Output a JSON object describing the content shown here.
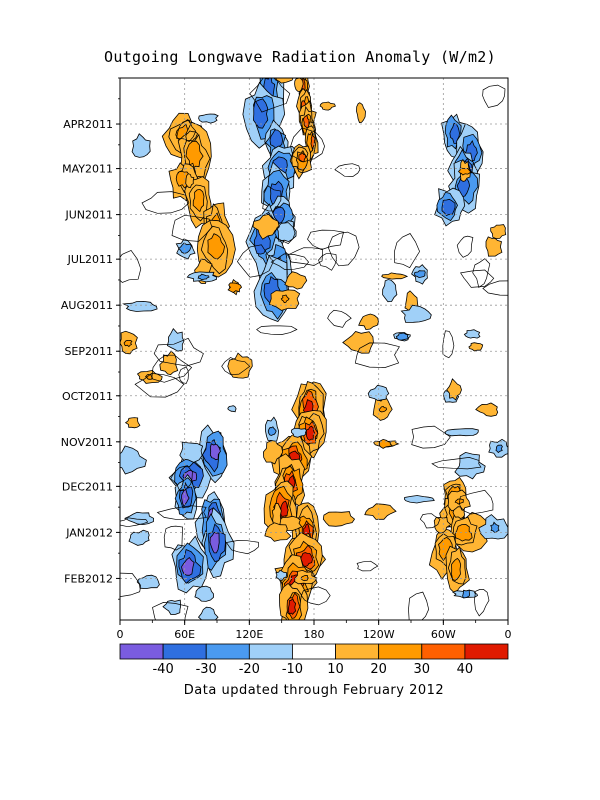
{
  "chart_data": {
    "type": "heatmap",
    "title": "Outgoing Longwave Radiation Anomaly (W/m2)",
    "xlabel": "",
    "ylabel": "",
    "x_ticks": [
      "0",
      "60E",
      "120E",
      "180",
      "120W",
      "60W",
      "0"
    ],
    "x_range_deg_east": [
      0,
      360
    ],
    "y_ticks": [
      "APR2011",
      "MAY2011",
      "JUN2011",
      "JUL2011",
      "AUG2011",
      "SEP2011",
      "OCT2011",
      "NOV2011",
      "DEC2011",
      "JAN2012",
      "FEB2012"
    ],
    "y_range": [
      "2011-03-01",
      "2012-02-29"
    ],
    "y_direction": "time increases downward",
    "grid": true,
    "contour_levels": [
      -40,
      -30,
      -20,
      -10,
      10,
      20,
      30,
      40
    ],
    "colorbar": {
      "labels": [
        "-40",
        "-30",
        "-20",
        "-10",
        "10",
        "20",
        "30",
        "40"
      ],
      "colors": [
        "#7a5ce0",
        "#2f6fe0",
        "#4a9af0",
        "#a0d0f8",
        "#ffffff",
        "#ffb533",
        "#ff9a00",
        "#ff6000",
        "#e01a00"
      ]
    },
    "features": [
      {
        "region": "60E-90E",
        "period": "APR2011-JUN2011",
        "sign": "positive",
        "max_level": 30
      },
      {
        "region": "120E-150E",
        "period": "MAR2011-JUL2011",
        "sign": "negative",
        "max_level": -30
      },
      {
        "region": "165E-180",
        "period": "MAR2011-APR2011",
        "sign": "positive",
        "max_level": 40
      },
      {
        "region": "150E-180",
        "period": "OCT2011-FEB2012",
        "sign": "positive",
        "max_level": 50
      },
      {
        "region": "60E-90E",
        "period": "NOV2011-JAN2012",
        "sign": "negative",
        "max_level": -40
      },
      {
        "region": "30W-60W",
        "period": "APR2011-MAY2011",
        "sign": "negative",
        "max_level": -30
      },
      {
        "region": "60W-30W",
        "period": "DEC2011-JAN2012",
        "sign": "positive",
        "max_level": 30
      }
    ]
  },
  "footer": {
    "note": "Data updated through February 2012"
  }
}
